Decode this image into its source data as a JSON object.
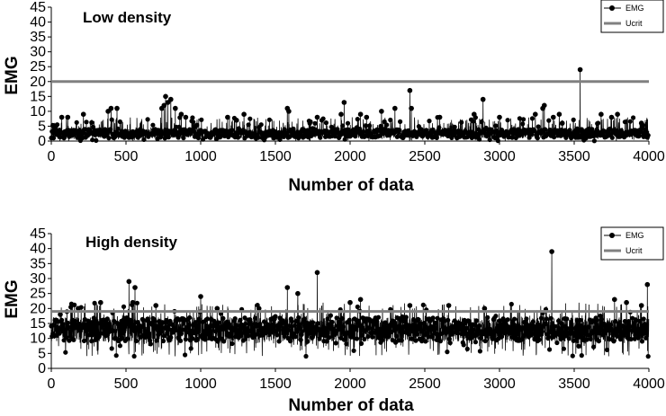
{
  "chart_data": [
    {
      "type": "line",
      "title": "Low density",
      "xlabel": "Number of data",
      "ylabel": "EMG",
      "xlim": [
        0,
        4000
      ],
      "ylim": [
        0,
        45
      ],
      "xticks": [
        0,
        500,
        1000,
        1500,
        2000,
        2500,
        3000,
        3500,
        4000
      ],
      "yticks": [
        0,
        5,
        10,
        15,
        20,
        25,
        30,
        35,
        40,
        45
      ],
      "grid": false,
      "legend_position": "top-right",
      "series": [
        {
          "name": "EMG",
          "style": "line with circle markers",
          "color": "#000000",
          "baseline_range": [
            1,
            4
          ],
          "noise_range": [
            0,
            8
          ],
          "n_points": 4000,
          "spikes": [
            {
              "x": 30,
              "y": 5
            },
            {
              "x": 70,
              "y": 8
            },
            {
              "x": 110,
              "y": 8
            },
            {
              "x": 215,
              "y": 9
            },
            {
              "x": 380,
              "y": 10
            },
            {
              "x": 400,
              "y": 11
            },
            {
              "x": 440,
              "y": 11
            },
            {
              "x": 740,
              "y": 11
            },
            {
              "x": 755,
              "y": 12
            },
            {
              "x": 765,
              "y": 15
            },
            {
              "x": 780,
              "y": 13
            },
            {
              "x": 800,
              "y": 14
            },
            {
              "x": 830,
              "y": 11
            },
            {
              "x": 870,
              "y": 9
            },
            {
              "x": 900,
              "y": 8
            },
            {
              "x": 1180,
              "y": 8
            },
            {
              "x": 1240,
              "y": 7
            },
            {
              "x": 1290,
              "y": 9
            },
            {
              "x": 1580,
              "y": 11
            },
            {
              "x": 1590,
              "y": 10
            },
            {
              "x": 1780,
              "y": 8
            },
            {
              "x": 1940,
              "y": 9
            },
            {
              "x": 1960,
              "y": 13
            },
            {
              "x": 2070,
              "y": 9
            },
            {
              "x": 2110,
              "y": 8
            },
            {
              "x": 2210,
              "y": 10
            },
            {
              "x": 2300,
              "y": 11
            },
            {
              "x": 2400,
              "y": 17
            },
            {
              "x": 2410,
              "y": 11
            },
            {
              "x": 2600,
              "y": 8
            },
            {
              "x": 2830,
              "y": 9
            },
            {
              "x": 2890,
              "y": 14
            },
            {
              "x": 3000,
              "y": 8
            },
            {
              "x": 3240,
              "y": 9
            },
            {
              "x": 3290,
              "y": 11
            },
            {
              "x": 3300,
              "y": 12
            },
            {
              "x": 3360,
              "y": 8
            },
            {
              "x": 3400,
              "y": 9
            },
            {
              "x": 3420,
              "y": 6
            },
            {
              "x": 3540,
              "y": 24
            },
            {
              "x": 3680,
              "y": 9
            },
            {
              "x": 3750,
              "y": 8
            },
            {
              "x": 3790,
              "y": 9
            },
            {
              "x": 3950,
              "y": 6
            }
          ]
        },
        {
          "name": "Ucrit",
          "style": "solid line",
          "color": "#808080",
          "x": [
            0,
            4000
          ],
          "y": [
            20,
            20
          ]
        }
      ]
    },
    {
      "type": "line",
      "title": "High density",
      "xlabel": "Number of data",
      "ylabel": "EMG",
      "xlim": [
        0,
        4000
      ],
      "ylim": [
        0,
        45
      ],
      "xticks": [
        0,
        500,
        1000,
        1500,
        2000,
        2500,
        3000,
        3500,
        4000
      ],
      "yticks": [
        0,
        5,
        10,
        15,
        20,
        25,
        30,
        35,
        40,
        45
      ],
      "grid": false,
      "legend_position": "top-right",
      "series": [
        {
          "name": "EMG",
          "style": "line with circle markers",
          "color": "#000000",
          "baseline_range": [
            9,
            17
          ],
          "noise_range": [
            4,
            22
          ],
          "n_points": 4000,
          "spikes": [
            {
              "x": 60,
              "y": 18
            },
            {
              "x": 180,
              "y": 20
            },
            {
              "x": 330,
              "y": 22
            },
            {
              "x": 520,
              "y": 29
            },
            {
              "x": 545,
              "y": 22
            },
            {
              "x": 560,
              "y": 27
            },
            {
              "x": 700,
              "y": 21
            },
            {
              "x": 1000,
              "y": 24
            },
            {
              "x": 1110,
              "y": 20
            },
            {
              "x": 1390,
              "y": 20
            },
            {
              "x": 1580,
              "y": 27
            },
            {
              "x": 1650,
              "y": 25
            },
            {
              "x": 1780,
              "y": 32
            },
            {
              "x": 2000,
              "y": 22
            },
            {
              "x": 2070,
              "y": 23
            },
            {
              "x": 2400,
              "y": 21
            },
            {
              "x": 2660,
              "y": 21
            },
            {
              "x": 2900,
              "y": 20
            },
            {
              "x": 3350,
              "y": 39
            },
            {
              "x": 3770,
              "y": 23
            },
            {
              "x": 3850,
              "y": 22
            },
            {
              "x": 3950,
              "y": 21
            },
            {
              "x": 3990,
              "y": 28
            }
          ]
        },
        {
          "name": "Ucrit",
          "style": "solid line",
          "color": "#808080",
          "x": [
            0,
            4000
          ],
          "y": [
            19,
            19
          ]
        }
      ]
    }
  ]
}
